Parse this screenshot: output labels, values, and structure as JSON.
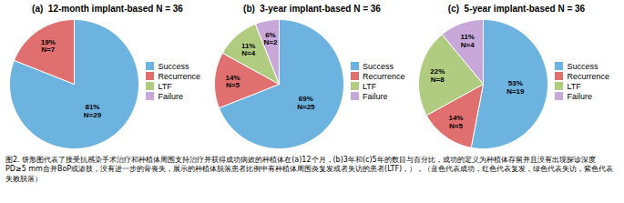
{
  "chart_data": [
    {
      "type": "pie",
      "title": "(a)  12-month implant-based N = 36",
      "categories": [
        "Success",
        "Recurrence"
      ],
      "values": [
        81,
        19
      ],
      "value_labels": [
        "81%\nN=29",
        "19%\nN=7"
      ],
      "colors": [
        "#6db3e0",
        "#e07070"
      ],
      "data_labels": true,
      "legend": "right",
      "legend_entries": [
        {
          "name": "Success",
          "color": "#6db3e0"
        },
        {
          "name": "Recurrence",
          "color": "#e07070"
        },
        {
          "name": "LTF",
          "color": "#b0cc80"
        },
        {
          "name": "Failure",
          "color": "#c8a8d8"
        }
      ]
    },
    {
      "type": "pie",
      "title": "(b)  3-year implant-based N = 36",
      "categories": [
        "Success",
        "Recurrence",
        "LTF",
        "Failure"
      ],
      "values": [
        69,
        14,
        11,
        6
      ],
      "value_labels": [
        "69%\nN=25",
        "14%\nN=5",
        "11%\nN=4",
        "6%\nN=2"
      ],
      "colors": [
        "#6db3e0",
        "#e07070",
        "#b0cc80",
        "#c8a8d8"
      ],
      "data_labels": true,
      "legend": "right",
      "legend_entries": [
        {
          "name": "Success",
          "color": "#6db3e0"
        },
        {
          "name": "Recurrence",
          "color": "#e07070"
        },
        {
          "name": "LTF",
          "color": "#b0cc80"
        },
        {
          "name": "Failure",
          "color": "#c8a8d8"
        }
      ]
    },
    {
      "type": "pie",
      "title": "(c)  5-year implant-based N = 36",
      "categories": [
        "Success",
        "Recurrence",
        "LTF",
        "Failure"
      ],
      "values": [
        53,
        14,
        22,
        11
      ],
      "value_labels": [
        "53%\nN=19",
        "14%\nN=5",
        "22%\nN=8",
        "11%\nN=4"
      ],
      "colors": [
        "#6db3e0",
        "#e07070",
        "#b0cc80",
        "#c8a8d8"
      ],
      "data_labels": true,
      "legend": "right",
      "legend_entries": [
        {
          "name": "Success",
          "color": "#6db3e0"
        },
        {
          "name": "Recurrence",
          "color": "#e07070"
        },
        {
          "name": "LTF",
          "color": "#b0cc80"
        },
        {
          "name": "Failure",
          "color": "#c8a8d8"
        }
      ]
    }
  ],
  "caption": "图2. 饼形图代表了接受抗感染手术治疗和种植体周围支持治疗并获得成功病效的种植体在(a)12个月，(b)3年和(c)5年的数目与百分比，成功的定义为种植体存留并且没有出现探诊深度PD≥5 mm合并BoP或渗肢，没有进一步的骨丧失，展示的种植体脱落患者比例中有种植体周围炎复发或者失访的患者(LTF)，），（蓝色代表成功，红色代表复发，绿色代表失访，紫色代表失败脱落）"
}
